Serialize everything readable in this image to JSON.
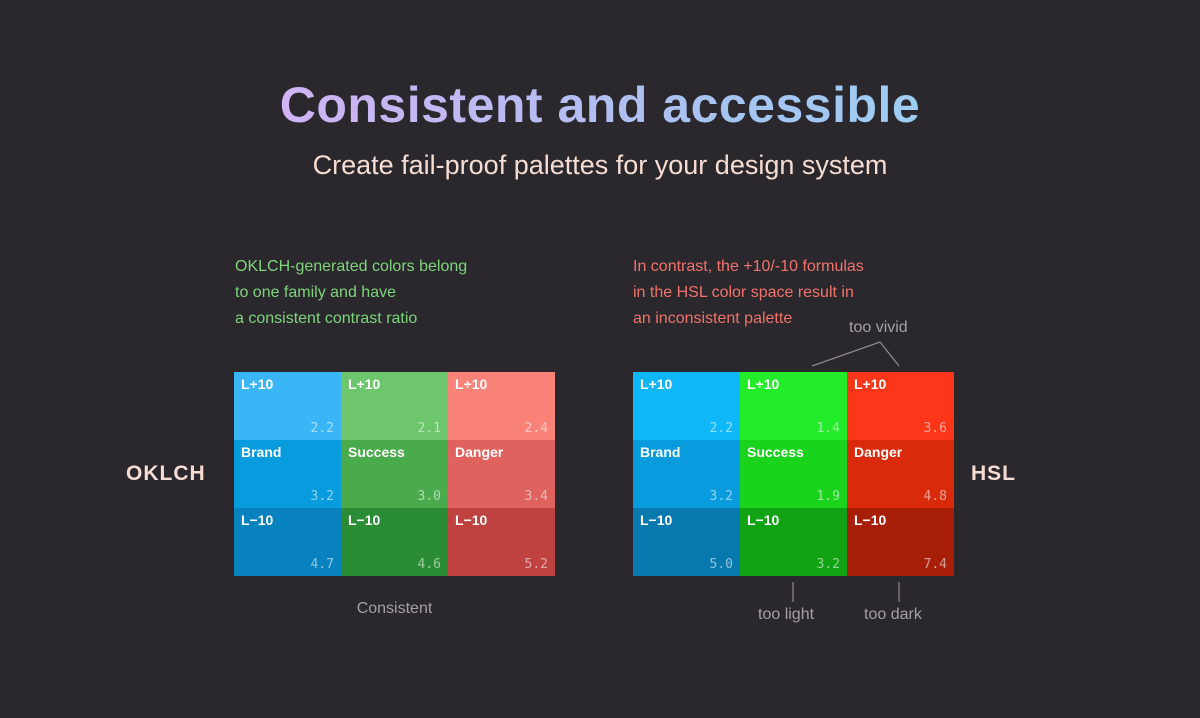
{
  "title": "Consistent and accessible",
  "subtitle": "Create fail-proof palettes for your design system",
  "notes": {
    "left": [
      "OKLCH-generated colors belong",
      "to one family and have",
      "a consistent contrast ratio"
    ],
    "right": [
      "In contrast, the +10/-10 formulas",
      "in the HSL color space result in",
      "an inconsistent palette"
    ]
  },
  "side_labels": {
    "left": "OKLCH",
    "right": "HSL"
  },
  "annotations": {
    "consistent": "Consistent",
    "too_vivid": "too vivid",
    "too_light": "too light",
    "too_dark": "too dark"
  },
  "colors": {
    "background": "#2a282c",
    "note_left": "#7ed47d",
    "note_right": "#f0736c"
  },
  "palettes": {
    "oklch": [
      {
        "label": "L+10",
        "ratio": "2.2",
        "color": "#3ab6f6"
      },
      {
        "label": "L+10",
        "ratio": "2.1",
        "color": "#6dc66b"
      },
      {
        "label": "L+10",
        "ratio": "2.4",
        "color": "#fa8379"
      },
      {
        "label": "Brand",
        "ratio": "3.2",
        "color": "#089cdf"
      },
      {
        "label": "Success",
        "ratio": "3.0",
        "color": "#4aab4c"
      },
      {
        "label": "Danger",
        "ratio": "3.4",
        "color": "#e0625f"
      },
      {
        "label": "L−10",
        "ratio": "4.7",
        "color": "#0882bf"
      },
      {
        "label": "L−10",
        "ratio": "4.6",
        "color": "#2a8d35"
      },
      {
        "label": "L−10",
        "ratio": "5.2",
        "color": "#bf4140"
      }
    ],
    "hsl": [
      {
        "label": "L+10",
        "ratio": "2.2",
        "color": "#0fb7f9"
      },
      {
        "label": "L+10",
        "ratio": "1.4",
        "color": "#23ec2a"
      },
      {
        "label": "L+10",
        "ratio": "3.6",
        "color": "#fc3719"
      },
      {
        "label": "Brand",
        "ratio": "3.2",
        "color": "#089cdf"
      },
      {
        "label": "Success",
        "ratio": "1.9",
        "color": "#19d31c"
      },
      {
        "label": "Danger",
        "ratio": "4.8",
        "color": "#da2a0c"
      },
      {
        "label": "L−10",
        "ratio": "5.0",
        "color": "#0779ae"
      },
      {
        "label": "L−10",
        "ratio": "3.2",
        "color": "#12a314"
      },
      {
        "label": "L−10",
        "ratio": "7.4",
        "color": "#a71f08"
      }
    ]
  }
}
